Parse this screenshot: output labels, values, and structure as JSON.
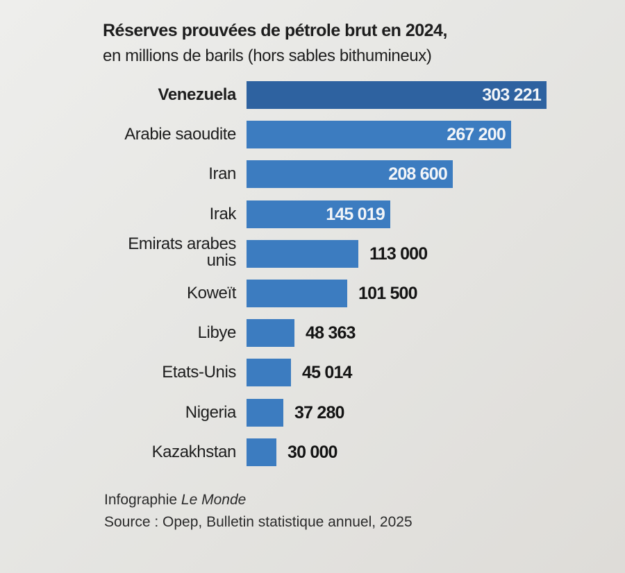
{
  "chart_data": {
    "type": "bar",
    "orientation": "horizontal",
    "title": "Réserves prouvées de pétrole brut en 2024,",
    "subtitle": "en millions de barils (hors sables bithumineux)",
    "categories": [
      "Venezuela",
      "Arabie saoudite",
      "Iran",
      "Irak",
      "Emirats arabes unis",
      "Koweït",
      "Libye",
      "Etats-Unis",
      "Nigeria",
      "Kazakhstan"
    ],
    "values": [
      303221,
      267200,
      208600,
      145019,
      113000,
      101500,
      48363,
      45014,
      37280,
      30000
    ],
    "value_labels": [
      "303 221",
      "267 200",
      "208 600",
      "145 019",
      "113 000",
      "101 500",
      "48 363",
      "45 014",
      "37 280",
      "30 000"
    ],
    "highlight": "Venezuela",
    "xlabel": "",
    "ylabel": "",
    "xlim": [
      0,
      303221
    ],
    "grid": false,
    "colors": {
      "highlight": "#2e62a0",
      "bar": "#3c7cc0"
    }
  },
  "footer": {
    "credit_prefix": "Infographie ",
    "credit_source": "Le Monde",
    "source": "Source : Opep, Bulletin statistique annuel, 2025"
  }
}
